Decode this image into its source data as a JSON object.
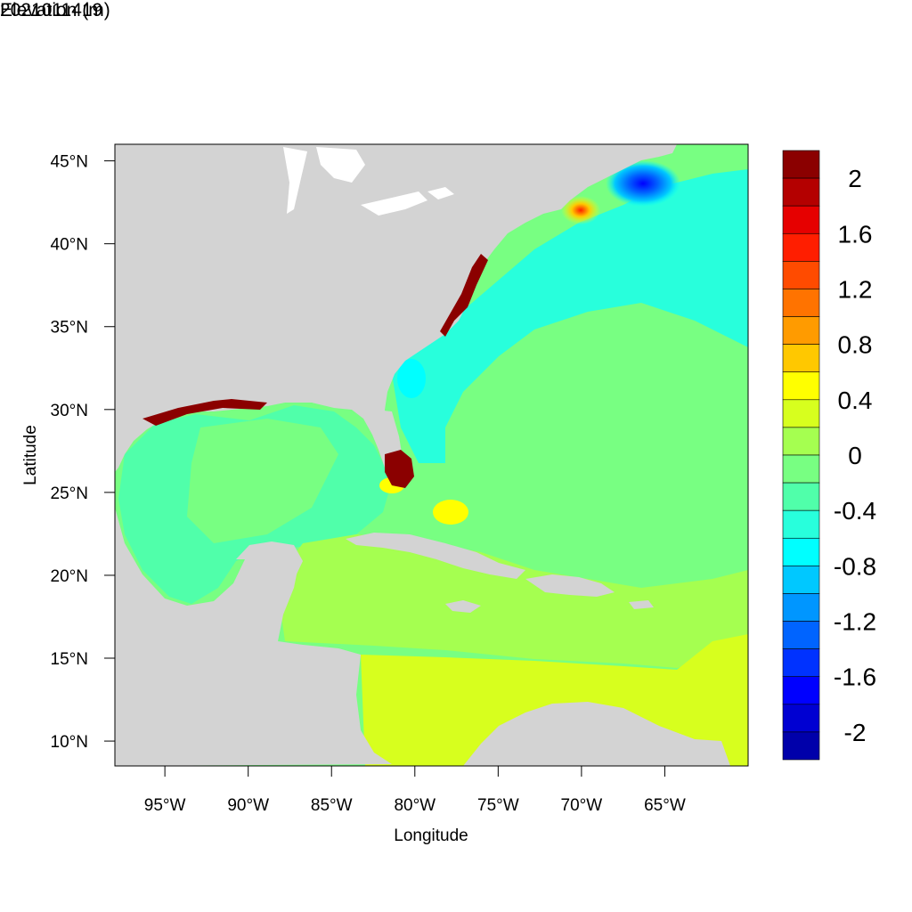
{
  "header": {
    "left_title": "2021011419",
    "right_title": "Elevation (m)"
  },
  "axes": {
    "xlabel": "Longitude",
    "ylabel": "Latitude",
    "x_ticks": [
      "95°W",
      "90°W",
      "85°W",
      "80°W",
      "75°W",
      "70°W",
      "65°W"
    ],
    "x_tick_values": [
      -95,
      -90,
      -85,
      -80,
      -75,
      -70,
      -65
    ],
    "y_ticks": [
      "45°N",
      "40°N",
      "35°N",
      "30°N",
      "25°N",
      "20°N",
      "15°N",
      "10°N"
    ],
    "y_tick_values": [
      45,
      40,
      35,
      30,
      25,
      20,
      15,
      10
    ],
    "lon_range": [
      -98,
      -60
    ],
    "lat_range": [
      8.5,
      46
    ]
  },
  "colorbar": {
    "labels": [
      "2",
      "1.6",
      "1.2",
      "0.8",
      "0.4",
      "0",
      "-0.4",
      "-0.8",
      "-1.2",
      "-1.6",
      "-2"
    ],
    "colors": [
      "#8b0000",
      "#b40000",
      "#e60000",
      "#ff1e00",
      "#ff4b00",
      "#ff7300",
      "#ff9b00",
      "#ffc800",
      "#ffff00",
      "#d7ff1e",
      "#a5ff50",
      "#78ff82",
      "#50ffaa",
      "#28ffdc",
      "#00ffff",
      "#00c8ff",
      "#0096ff",
      "#0064ff",
      "#0032ff",
      "#0000ff",
      "#0000d2",
      "#0000aa"
    ]
  },
  "colors": {
    "land": "#d3d3d3",
    "atlantic": "#28ffdc",
    "gulf": "#50ffaa",
    "open_ocean": "#78ff82",
    "caribbean": "#a5ff50",
    "south_caribbean": "#d7ff1e",
    "low": "#0064ff",
    "high": "#8b0000"
  }
}
